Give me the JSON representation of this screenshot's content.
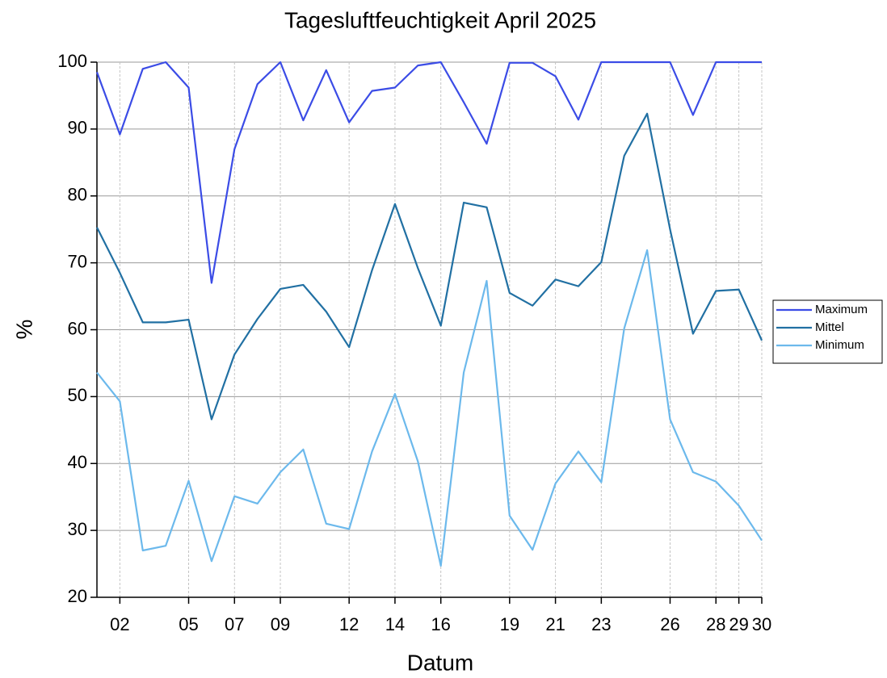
{
  "chart_data": {
    "type": "line",
    "title": "Tagesluftfeuchtigkeit April 2025",
    "xlabel": "Datum",
    "ylabel": "%",
    "x": [
      1,
      2,
      3,
      4,
      5,
      6,
      7,
      8,
      9,
      10,
      11,
      12,
      13,
      14,
      15,
      16,
      17,
      18,
      19,
      20,
      21,
      22,
      23,
      24,
      25,
      26,
      27,
      28,
      29,
      30
    ],
    "xlim": [
      1,
      30
    ],
    "xticks": [
      {
        "value": 2,
        "label": "02"
      },
      {
        "value": 5,
        "label": "05"
      },
      {
        "value": 7,
        "label": "07"
      },
      {
        "value": 9,
        "label": "09"
      },
      12,
      14,
      16,
      19,
      21,
      23,
      26,
      28,
      29,
      30
    ],
    "ylim": [
      20,
      100
    ],
    "yticks": [
      20,
      30,
      40,
      50,
      60,
      70,
      80,
      90,
      100
    ],
    "grid": true,
    "legend": "right",
    "series": [
      {
        "name": "Maximum",
        "color": "#3b4ce6",
        "values": [
          98.5,
          89.2,
          99,
          100,
          96.2,
          67,
          87,
          96.7,
          100,
          91.3,
          98.8,
          91,
          95.7,
          96.2,
          99.5,
          100,
          94,
          87.8,
          99.9,
          99.9,
          97.9,
          91.4,
          100,
          100,
          100,
          100,
          92.1,
          100,
          100,
          100
        ]
      },
      {
        "name": "Mittel",
        "color": "#2170a3",
        "values": [
          75.3,
          68.5,
          61.1,
          61.1,
          61.5,
          46.6,
          56.3,
          61.6,
          66.1,
          66.7,
          62.7,
          57.4,
          68.9,
          78.8,
          69.2,
          60.6,
          79,
          78.3,
          65.5,
          63.6,
          67.5,
          66.5,
          70.1,
          86,
          92.3,
          75,
          59.4,
          65.8,
          66,
          58.4
        ]
      },
      {
        "name": "Minimum",
        "color": "#6cb9ec",
        "values": [
          53.6,
          49.3,
          27,
          27.7,
          37.4,
          25.4,
          35.1,
          34,
          38.7,
          42.1,
          31,
          30.2,
          41.8,
          50.4,
          40.3,
          24.7,
          53.6,
          67.3,
          32.2,
          27.1,
          37,
          41.8,
          37.2,
          60.2,
          71.9,
          46.6,
          38.7,
          37.3,
          33.7,
          28.5
        ]
      }
    ]
  }
}
